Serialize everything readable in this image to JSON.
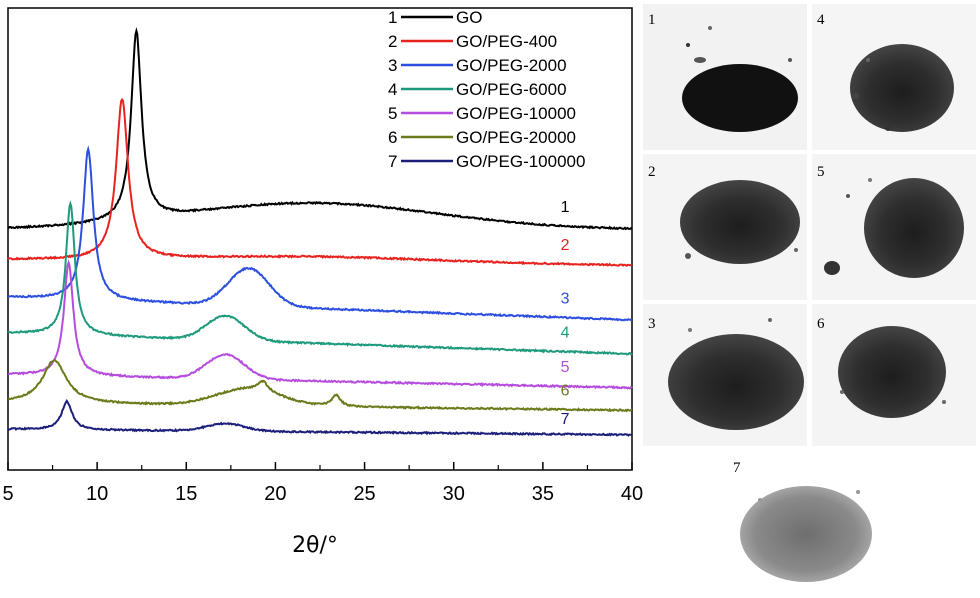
{
  "chart_data": {
    "type": "line",
    "xlabel": "2θ/°",
    "xlim": [
      5,
      40
    ],
    "xticks": [
      "5",
      "10",
      "15",
      "20",
      "25",
      "30",
      "35",
      "40"
    ],
    "ylabel": "",
    "y_units": "arbitrary (stacked offsets)",
    "legend_position": "top-right",
    "grid": false,
    "series": [
      {
        "id": "1",
        "name": "GO",
        "color": "#000000",
        "label_color": "#000000",
        "baseline_at_5": 0.36,
        "baseline_at_40": 0.36,
        "hump": {
          "center": 22,
          "height": 0.14,
          "width": 10
        },
        "peaks": [
          {
            "x": 12.2,
            "height": 1.0,
            "width": 0.35
          }
        ]
      },
      {
        "id": "2",
        "name": "GO/PEG-400",
        "color": "#e8221f",
        "label_color": "#e8221f",
        "baseline_at_5": 0.2,
        "baseline_at_40": 0.17,
        "hump": {
          "center": 22,
          "height": 0.03,
          "width": 10
        },
        "peaks": [
          {
            "x": 11.4,
            "height": 0.85,
            "width": 0.4
          }
        ]
      },
      {
        "id": "3",
        "name": "GO/PEG-2000",
        "color": "#2c4fe0",
        "label_color": "#2c4fe0",
        "baseline_at_5": 0.0,
        "baseline_at_40": -0.12,
        "hump": {
          "center": 18.5,
          "height": 0.2,
          "width": 1.6
        },
        "peaks": [
          {
            "x": 9.5,
            "height": 0.8,
            "width": 0.35
          }
        ]
      },
      {
        "id": "4",
        "name": "GO/PEG-6000",
        "color": "#1e9a7c",
        "label_color": "#1e9a7c",
        "baseline_at_5": -0.19,
        "baseline_at_40": -0.3,
        "hump": {
          "center": 17.2,
          "height": 0.13,
          "width": 1.5
        },
        "peaks": [
          {
            "x": 8.5,
            "height": 0.7,
            "width": 0.3
          }
        ]
      },
      {
        "id": "5",
        "name": "GO/PEG-10000",
        "color": "#b54cde",
        "label_color": "#b54cde",
        "baseline_at_5": -0.41,
        "baseline_at_40": -0.48,
        "hump": {
          "center": 17.2,
          "height": 0.13,
          "width": 1.5
        },
        "peaks": [
          {
            "x": 8.4,
            "height": 0.6,
            "width": 0.32
          }
        ]
      },
      {
        "id": "6",
        "name": "GO/PEG-20000",
        "color": "#6b7a1a",
        "label_color": "#6b7a1a",
        "baseline_at_5": -0.56,
        "baseline_at_40": -0.6,
        "hump": {
          "center": 18.5,
          "height": 0.09,
          "width": 2.5
        },
        "peaks": [
          {
            "x": 7.6,
            "height": 0.23,
            "width": 0.8
          },
          {
            "x": 19.3,
            "height": 0.05,
            "width": 0.3
          },
          {
            "x": 23.4,
            "height": 0.06,
            "width": 0.3
          }
        ]
      },
      {
        "id": "7",
        "name": "GO/PEG-100000",
        "color": "#1c1f7a",
        "label_color": "#1c1f7a",
        "baseline_at_5": -0.7,
        "baseline_at_40": -0.73,
        "hump": {
          "center": 17.2,
          "height": 0.04,
          "width": 1.5
        },
        "peaks": [
          {
            "x": 8.3,
            "height": 0.15,
            "width": 0.35
          }
        ]
      }
    ]
  },
  "photos": [
    {
      "number": "1",
      "description": "dark powder sample 1"
    },
    {
      "number": "4",
      "description": "dark powder sample 4"
    },
    {
      "number": "2",
      "description": "dark powder sample 2"
    },
    {
      "number": "5",
      "description": "dark powder sample 5"
    },
    {
      "number": "3",
      "description": "dark powder sample 3"
    },
    {
      "number": "6",
      "description": "dark powder sample 6"
    },
    {
      "number": "7",
      "description": "grey powder sample 7"
    }
  ]
}
